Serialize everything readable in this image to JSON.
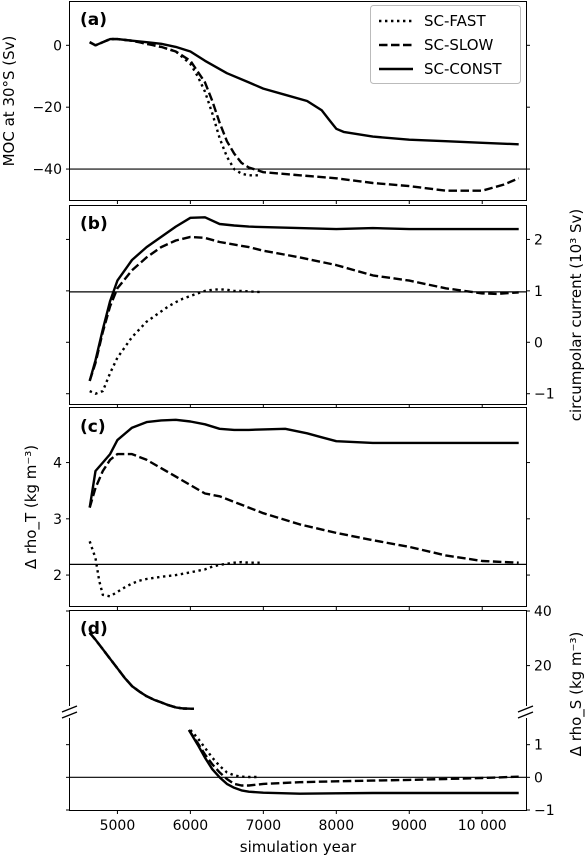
{
  "chart_data": {
    "type": "line",
    "xlabel": "simulation year",
    "xticks": [
      5000,
      6000,
      7000,
      8000,
      9000,
      10000
    ],
    "xtick_labels": [
      "5000",
      "6000",
      "7000",
      "8000",
      "9000",
      "10 000"
    ],
    "xlim": [
      4350,
      10600
    ],
    "legend": {
      "placement": "top-right",
      "entries": [
        {
          "name": "SC-FAST",
          "style": "dotted"
        },
        {
          "name": "SC-SLOW",
          "style": "dashed"
        },
        {
          "name": "SC-CONST",
          "style": "solid"
        }
      ]
    },
    "panels": [
      {
        "id": "a",
        "label": "(a)",
        "ylabel_left": "MOC at 30°S (Sv)",
        "ylim": [
          -50,
          14
        ],
        "yticks_left": [
          0,
          -20,
          -40
        ],
        "ytick_labels_left": [
          "0",
          "−20",
          "−40"
        ],
        "hline": -40,
        "series": [
          {
            "name": "SC-FAST",
            "x": [
              4620,
              4700,
              4800,
              4900,
              5000,
              5200,
              5400,
              5600,
              5800,
              6000,
              6100,
              6200,
              6300,
              6400,
              6500,
              6600,
              6700,
              6800,
              6900,
              6950
            ],
            "y": [
              1,
              0,
              1,
              2,
              2,
              1.5,
              0.5,
              -0.5,
              -2,
              -6,
              -10,
              -15,
              -22,
              -30,
              -36,
              -40,
              -41.5,
              -42,
              -42,
              -42
            ]
          },
          {
            "name": "SC-SLOW",
            "x": [
              4620,
              4700,
              4800,
              4900,
              5000,
              5200,
              5400,
              5600,
              5800,
              6000,
              6200,
              6300,
              6400,
              6500,
              6600,
              6700,
              6800,
              7000,
              7500,
              8000,
              8500,
              9000,
              9500,
              10000,
              10300,
              10500
            ],
            "y": [
              1,
              0,
              1,
              2,
              2,
              1.5,
              0.5,
              -0.5,
              -2,
              -5,
              -12,
              -18,
              -25,
              -31,
              -35,
              -38,
              -39.5,
              -41,
              -42,
              -43,
              -44.5,
              -45.5,
              -47,
              -47,
              -45,
              -43
            ]
          },
          {
            "name": "SC-CONST",
            "x": [
              4620,
              4700,
              4800,
              4900,
              5000,
              5200,
              5400,
              5600,
              5800,
              6000,
              6200,
              6500,
              6800,
              7000,
              7300,
              7600,
              7800,
              7900,
              8000,
              8100,
              8500,
              9000,
              9500,
              10000,
              10500
            ],
            "y": [
              1,
              0,
              1,
              2,
              2,
              1.5,
              1,
              0.5,
              -0.5,
              -2,
              -5,
              -9,
              -12,
              -14,
              -16,
              -18,
              -21,
              -24,
              -27,
              -28,
              -29.5,
              -30.5,
              -31,
              -31.5,
              -32
            ]
          }
        ]
      },
      {
        "id": "b",
        "label": "(b)",
        "ylabel_right": "circumpolar current (10³ Sv)",
        "ylim": [
          -1.2,
          2.65
        ],
        "yticks_right": [
          2,
          1,
          0,
          -1
        ],
        "ytick_labels_right": [
          "2",
          "1",
          "0",
          "−1"
        ],
        "hline": 0.98,
        "series": [
          {
            "name": "SC-FAST",
            "x": [
              4620,
              4700,
              4800,
              4900,
              5000,
              5100,
              5200,
              5300,
              5400,
              5500,
              5600,
              5700,
              5800,
              5900,
              6000,
              6100,
              6200,
              6300,
              6400,
              6500,
              6600,
              6700,
              6800,
              6900,
              6950
            ],
            "y": [
              -0.95,
              -1.0,
              -0.95,
              -0.6,
              -0.3,
              -0.1,
              0.1,
              0.25,
              0.4,
              0.5,
              0.6,
              0.7,
              0.78,
              0.85,
              0.9,
              0.95,
              1.0,
              1.02,
              1.03,
              1.02,
              1.0,
              1.0,
              0.99,
              0.98,
              0.98
            ]
          },
          {
            "name": "SC-SLOW",
            "x": [
              4620,
              4700,
              4800,
              4900,
              5000,
              5200,
              5400,
              5600,
              5800,
              6000,
              6200,
              6400,
              6600,
              6800,
              7000,
              7500,
              8000,
              8500,
              9000,
              9500,
              10000,
              10200,
              10500
            ],
            "y": [
              -0.75,
              -0.4,
              0.2,
              0.7,
              1.05,
              1.4,
              1.65,
              1.85,
              1.98,
              2.05,
              2.03,
              1.95,
              1.9,
              1.85,
              1.78,
              1.65,
              1.5,
              1.3,
              1.2,
              1.05,
              0.95,
              0.94,
              0.97
            ]
          },
          {
            "name": "SC-CONST",
            "x": [
              4620,
              4700,
              4800,
              4900,
              5000,
              5200,
              5400,
              5600,
              5800,
              6000,
              6200,
              6400,
              6600,
              6800,
              7000,
              7500,
              8000,
              8500,
              9000,
              9500,
              10000,
              10500
            ],
            "y": [
              -0.75,
              -0.35,
              0.25,
              0.8,
              1.2,
              1.6,
              1.85,
              2.05,
              2.25,
              2.42,
              2.43,
              2.3,
              2.27,
              2.25,
              2.24,
              2.22,
              2.2,
              2.22,
              2.2,
              2.2,
              2.2,
              2.2
            ]
          }
        ]
      },
      {
        "id": "c",
        "label": "(c)",
        "ylabel_left": "Δ  rho_T (kg m⁻³)",
        "ylim": [
          1.45,
          4.97
        ],
        "yticks_left": [
          4,
          3,
          2
        ],
        "ytick_labels_left": [
          "4",
          "3",
          "2"
        ],
        "hline": 2.19,
        "series": [
          {
            "name": "SC-FAST",
            "x": [
              4620,
              4700,
              4750,
              4800,
              4900,
              5000,
              5100,
              5200,
              5300,
              5400,
              5600,
              5800,
              6000,
              6200,
              6300,
              6400,
              6500,
              6600,
              6700,
              6800,
              6900,
              6950
            ],
            "y": [
              2.6,
              2.3,
              1.9,
              1.65,
              1.62,
              1.7,
              1.78,
              1.85,
              1.9,
              1.93,
              1.97,
              2.0,
              2.05,
              2.1,
              2.15,
              2.18,
              2.2,
              2.22,
              2.23,
              2.22,
              2.22,
              2.22
            ]
          },
          {
            "name": "SC-SLOW",
            "x": [
              4620,
              4700,
              4800,
              4900,
              5000,
              5200,
              5400,
              5600,
              5800,
              6000,
              6200,
              6400,
              6600,
              6800,
              7000,
              7500,
              8000,
              8500,
              9000,
              9500,
              10000,
              10500
            ],
            "y": [
              3.2,
              3.55,
              3.85,
              4.05,
              4.15,
              4.15,
              4.05,
              3.9,
              3.75,
              3.6,
              3.45,
              3.4,
              3.3,
              3.2,
              3.1,
              2.9,
              2.75,
              2.62,
              2.5,
              2.35,
              2.25,
              2.22
            ]
          },
          {
            "name": "SC-CONST",
            "x": [
              4620,
              4700,
              4800,
              4900,
              5000,
              5200,
              5400,
              5600,
              5800,
              6000,
              6200,
              6400,
              6600,
              6800,
              7000,
              7300,
              7600,
              7800,
              8000,
              8500,
              9000,
              9500,
              10000,
              10500
            ],
            "y": [
              3.2,
              3.85,
              4.0,
              4.15,
              4.4,
              4.62,
              4.72,
              4.75,
              4.76,
              4.73,
              4.68,
              4.6,
              4.58,
              4.58,
              4.59,
              4.6,
              4.52,
              4.45,
              4.38,
              4.35,
              4.35,
              4.35,
              4.35,
              4.35
            ]
          }
        ]
      },
      {
        "id": "d",
        "label": "(d)",
        "ylabel_right": "Δ rho_S (kg m⁻³)",
        "broken_axis": true,
        "ylim_upper": [
          3,
          40
        ],
        "ylim_lower": [
          -1,
          2
        ],
        "yticks_right": [
          40,
          20,
          1,
          0,
          -1
        ],
        "ytick_labels_right": [
          "40",
          "20",
          "1",
          "0",
          "−1"
        ],
        "hline": 0,
        "series": [
          {
            "name": "SC-FAST",
            "segments": [
              {
                "x": [
                  4620,
                  4700,
                  4800,
                  4900,
                  5000,
                  5100,
                  5200,
                  5300,
                  5400,
                  5500,
                  5600,
                  5700,
                  5800,
                  5900,
                  6000,
                  6050
                ],
                "y": [
                  32,
                  29.5,
                  26,
                  22.5,
                  19,
                  15.5,
                  12.5,
                  10.5,
                  8.8,
                  7.5,
                  6.5,
                  5.5,
                  4.7,
                  4.3,
                  4.2,
                  4.2
                ]
              },
              {
                "x": [
                  6000,
                  6100,
                  6200,
                  6300,
                  6400,
                  6500,
                  6600,
                  6700,
                  6800,
                  6900,
                  6950
                ],
                "y": [
                  1.45,
                  1.2,
                  0.9,
                  0.6,
                  0.35,
                  0.15,
                  0.06,
                  0.02,
                  0.01,
                  0.01,
                  0.01
                ]
              }
            ]
          },
          {
            "name": "SC-SLOW",
            "segments": [
              {
                "x": [
                  4620,
                  4700,
                  4800,
                  4900,
                  5000,
                  5100,
                  5200,
                  5300,
                  5400,
                  5500,
                  5600,
                  5700,
                  5800,
                  5900,
                  6000,
                  6050
                ],
                "y": [
                  32,
                  29.5,
                  26,
                  22.5,
                  19,
                  15.5,
                  12.5,
                  10.5,
                  8.8,
                  7.5,
                  6.5,
                  5.5,
                  4.7,
                  4.3,
                  4.2,
                  4.2
                ]
              },
              {
                "x": [
                  5980,
                  6100,
                  6200,
                  6300,
                  6400,
                  6500,
                  6600,
                  6700,
                  6800,
                  7000,
                  7500,
                  8000,
                  8500,
                  9000,
                  9500,
                  10000,
                  10500
                ],
                "y": [
                  1.45,
                  1.05,
                  0.7,
                  0.4,
                  0.15,
                  -0.05,
                  -0.2,
                  -0.25,
                  -0.25,
                  -0.2,
                  -0.15,
                  -0.12,
                  -0.1,
                  -0.08,
                  -0.05,
                  -0.02,
                  0.02
                ]
              }
            ]
          },
          {
            "name": "SC-CONST",
            "segments": [
              {
                "x": [
                  4620,
                  4700,
                  4800,
                  4900,
                  5000,
                  5100,
                  5200,
                  5300,
                  5400,
                  5500,
                  5600,
                  5700,
                  5800,
                  5900,
                  6000,
                  6050
                ],
                "y": [
                  32,
                  29.5,
                  26,
                  22.5,
                  19,
                  15.5,
                  12.5,
                  10.5,
                  8.8,
                  7.5,
                  6.5,
                  5.5,
                  4.7,
                  4.3,
                  4.2,
                  4.2
                ]
              },
              {
                "x": [
                  5980,
                  6100,
                  6200,
                  6300,
                  6400,
                  6500,
                  6600,
                  6700,
                  6800,
                  7000,
                  7500,
                  8000,
                  8500,
                  9000,
                  9500,
                  10000,
                  10500
                ],
                "y": [
                  1.45,
                  1.0,
                  0.6,
                  0.25,
                  0.0,
                  -0.2,
                  -0.32,
                  -0.4,
                  -0.44,
                  -0.47,
                  -0.5,
                  -0.49,
                  -0.48,
                  -0.48,
                  -0.48,
                  -0.48,
                  -0.48
                ]
              }
            ]
          }
        ]
      }
    ]
  }
}
